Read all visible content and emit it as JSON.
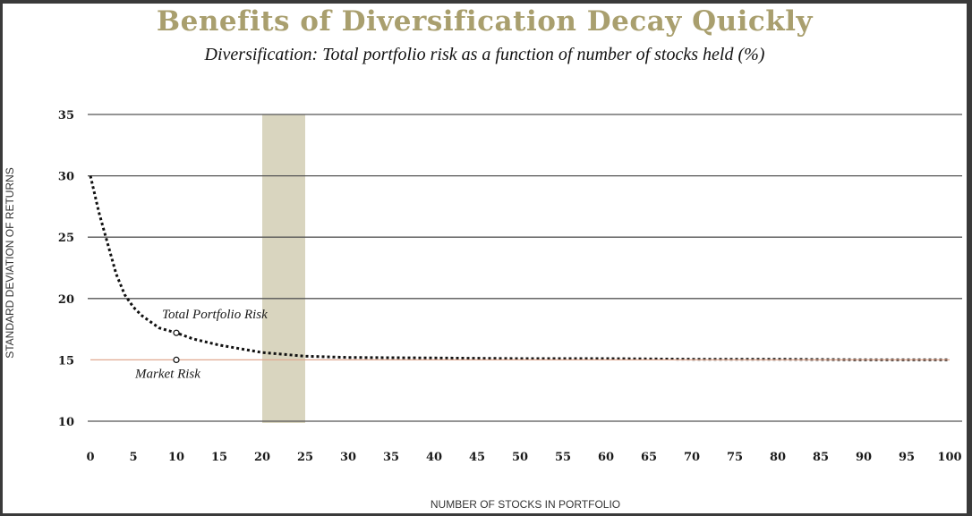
{
  "chart_data": {
    "type": "line",
    "title": "Benefits of Diversification Decay Quickly",
    "subtitle": "Diversification: Total portfolio risk as a function of number of stocks held (%)",
    "xlabel": "NUMBER OF STOCKS IN PORTFOLIO",
    "ylabel": "STANDARD DEVIATION OF RETURNS",
    "xlim": [
      0,
      100
    ],
    "ylim": [
      10,
      35
    ],
    "x_ticks": [
      0,
      5,
      10,
      15,
      20,
      25,
      30,
      35,
      40,
      45,
      50,
      55,
      60,
      65,
      70,
      75,
      80,
      85,
      90,
      95,
      100
    ],
    "y_ticks": [
      10,
      15,
      20,
      25,
      30,
      35
    ],
    "grid": "horizontal",
    "highlight_band": {
      "x": [
        20,
        25
      ],
      "color": "#d9d5bf"
    },
    "series": [
      {
        "name": "Total Portfolio Risk",
        "style": "dotted",
        "color": "#111111",
        "x": [
          0,
          1,
          2,
          3,
          4,
          5,
          6,
          7,
          8,
          10,
          12,
          15,
          20,
          25,
          30,
          40,
          50,
          60,
          70,
          80,
          90,
          100
        ],
        "values": [
          30.0,
          27.0,
          24.5,
          22.0,
          20.3,
          19.3,
          18.6,
          18.1,
          17.6,
          17.2,
          16.7,
          16.2,
          15.6,
          15.3,
          15.2,
          15.15,
          15.1,
          15.1,
          15.05,
          15.05,
          15.0,
          15.0
        ]
      },
      {
        "name": "Market Risk",
        "style": "solid",
        "color": "#e0a890",
        "x": [
          0,
          100
        ],
        "values": [
          15,
          15
        ]
      }
    ],
    "annotations": [
      {
        "text": "Total Portfolio Risk",
        "x": 10,
        "y": 17.2
      },
      {
        "text": "Market Risk",
        "x": 10,
        "y": 15.0
      }
    ]
  }
}
